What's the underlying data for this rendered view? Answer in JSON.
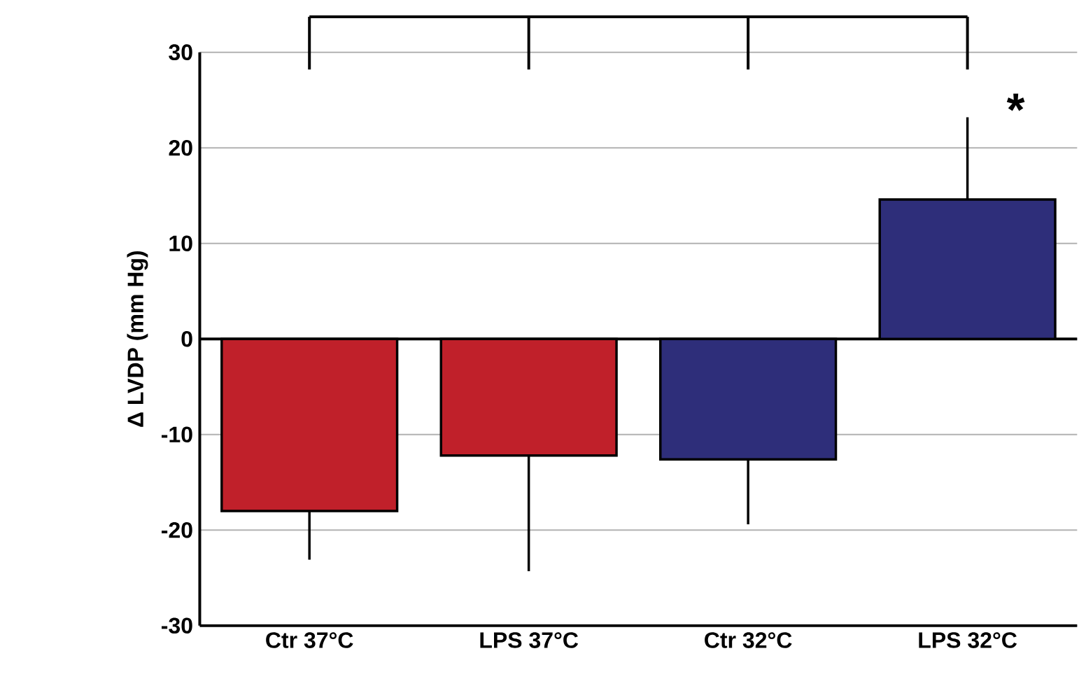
{
  "chart_data": {
    "type": "bar",
    "ylabel": "Δ LVDP (mm Hg)",
    "categories": [
      "Ctr 37°C",
      "LPS 37°C",
      "Ctr 32°C",
      "LPS 32°C"
    ],
    "values": [
      -18,
      -12.2,
      -12.6,
      14.6
    ],
    "colors": [
      "#c0202a",
      "#c0202a",
      "#2e2e7a",
      "#2e2e7a"
    ],
    "errors": [
      [
        -23.1,
        -18
      ],
      [
        -24.3,
        -12.2
      ],
      [
        -19.4,
        -12.6
      ],
      [
        14.6,
        23.2
      ]
    ],
    "ylim": [
      -30,
      30
    ],
    "yticks": [
      -30,
      -20,
      -10,
      0,
      10,
      20,
      30
    ],
    "grid": "y",
    "annotations": [
      "*"
    ]
  }
}
